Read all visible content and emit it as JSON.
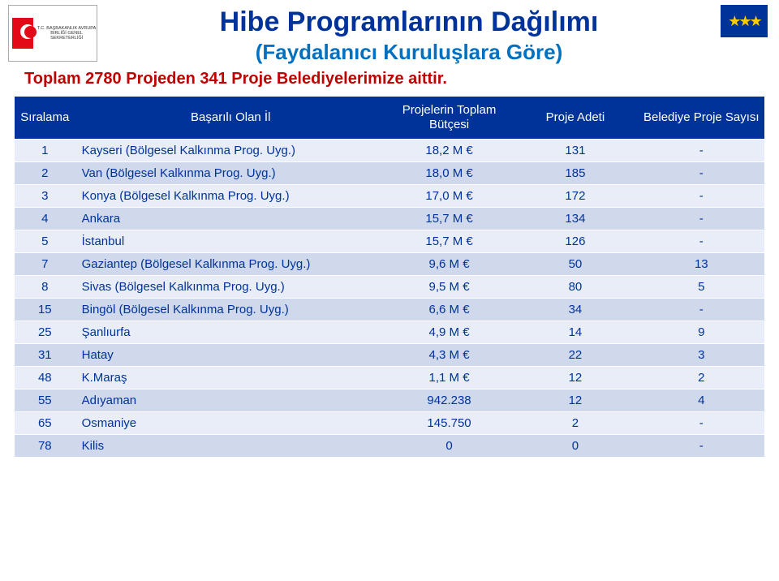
{
  "header": {
    "logo_left_text": "T.C.\nBAŞBAKANLIK\nAVRUPA BİRLİĞİ GENEL SEKRETERLİĞİ",
    "title": "Hibe Programlarının Dağılımı",
    "subtitle": "(Faydalanıcı Kuruluşlara Göre)",
    "tagline": "Toplam 2780 Projeden 341 Proje Belediyelerimize aittir."
  },
  "table": {
    "columns": [
      "Sıralama",
      "Başarılı Olan İl",
      "Projelerin Toplam Bütçesi",
      "Proje Adeti",
      "Belediye Proje Sayısı"
    ],
    "rows": [
      {
        "rank": "1",
        "il": "Kayseri (Bölgesel Kalkınma Prog. Uyg.)",
        "butce": "18,2 M €",
        "adet": "131",
        "belediye": "-"
      },
      {
        "rank": "2",
        "il": "Van (Bölgesel Kalkınma Prog. Uyg.)",
        "butce": "18,0 M €",
        "adet": "185",
        "belediye": "-"
      },
      {
        "rank": "3",
        "il": "Konya (Bölgesel Kalkınma Prog. Uyg.)",
        "butce": "17,0 M €",
        "adet": "172",
        "belediye": "-"
      },
      {
        "rank": "4",
        "il": "Ankara",
        "butce": "15,7 M €",
        "adet": "134",
        "belediye": "-"
      },
      {
        "rank": "5",
        "il": "İstanbul",
        "butce": "15,7 M €",
        "adet": "126",
        "belediye": "-"
      },
      {
        "rank": "7",
        "il": "Gaziantep (Bölgesel Kalkınma Prog. Uyg.)",
        "butce": "9,6 M €",
        "adet": "50",
        "belediye": "13"
      },
      {
        "rank": "8",
        "il": "Sivas (Bölgesel Kalkınma Prog. Uyg.)",
        "butce": "9,5 M €",
        "adet": "80",
        "belediye": "5"
      },
      {
        "rank": "15",
        "il": "Bingöl (Bölgesel Kalkınma Prog. Uyg.)",
        "butce": "6,6 M €",
        "adet": "34",
        "belediye": "-"
      },
      {
        "rank": "25",
        "il": "Şanlıurfa",
        "butce": "4,9 M €",
        "adet": "14",
        "belediye": "9"
      },
      {
        "rank": "31",
        "il": "Hatay",
        "butce": "4,3 M €",
        "adet": "22",
        "belediye": "3"
      },
      {
        "rank": "48",
        "il": "K.Maraş",
        "butce": "1,1 M €",
        "adet": "12",
        "belediye": "2"
      },
      {
        "rank": "55",
        "il": "Adıyaman",
        "butce": "942.238",
        "adet": "12",
        "belediye": "4"
      },
      {
        "rank": "65",
        "il": "Osmaniye",
        "butce": "145.750",
        "adet": "2",
        "belediye": "-"
      },
      {
        "rank": "78",
        "il": "Kilis",
        "butce": "0",
        "adet": "0",
        "belediye": "-"
      }
    ],
    "header_bg": "#003399",
    "header_fg": "#ffffff",
    "row_odd_bg": "#e9edf7",
    "row_even_bg": "#d0d8ec",
    "cell_fg": "#003399"
  },
  "colors": {
    "title": "#003399",
    "subtitle": "#0070c0",
    "tagline": "#c00000"
  }
}
